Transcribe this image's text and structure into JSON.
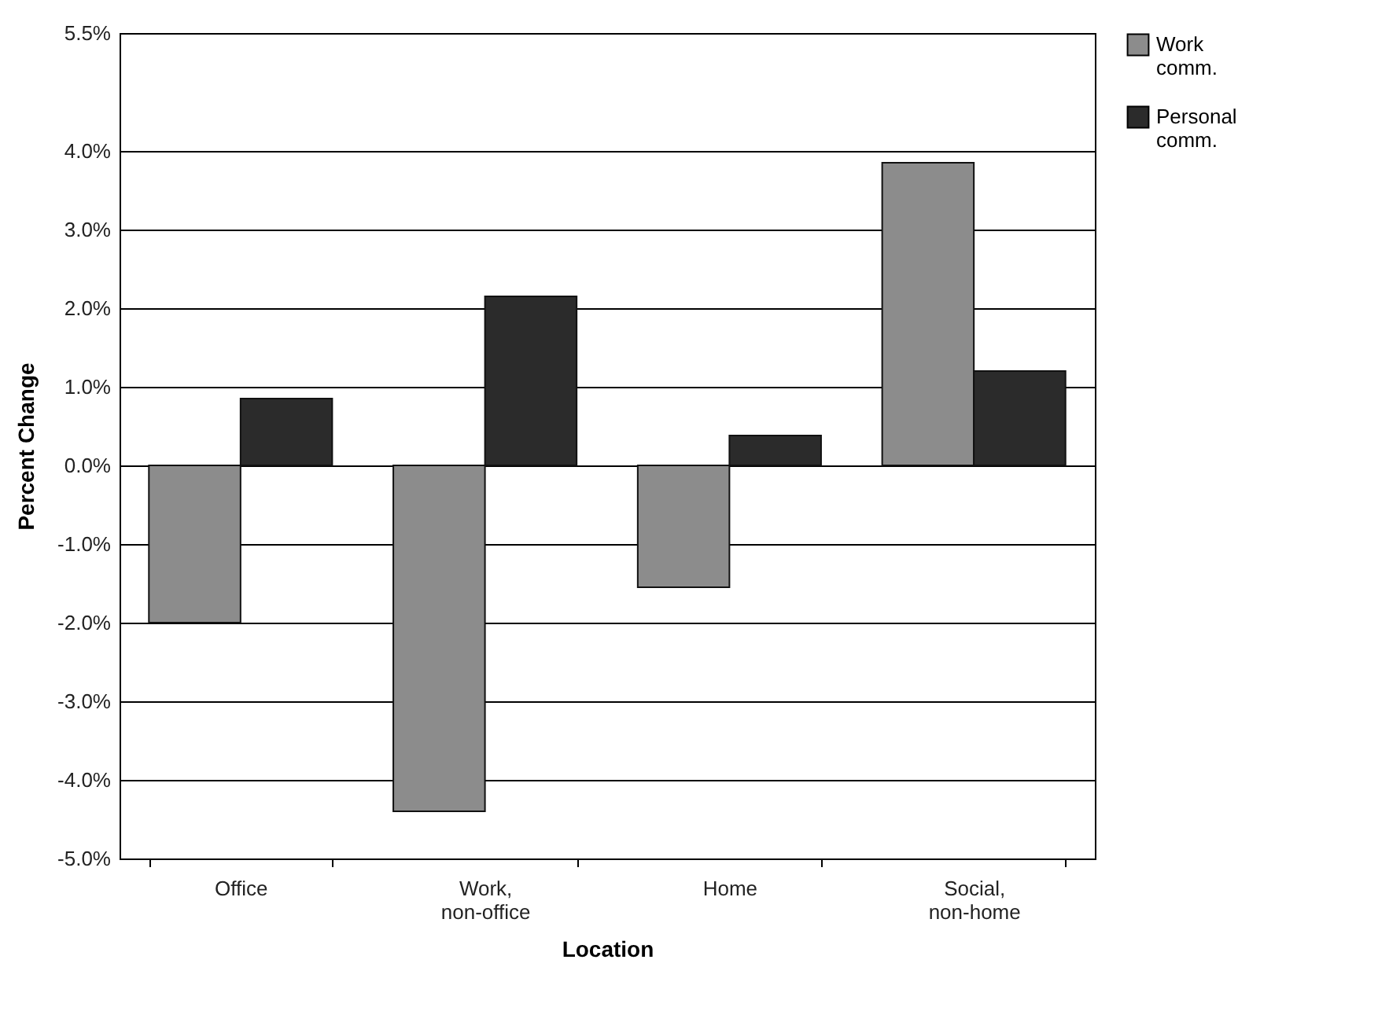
{
  "chart_data": {
    "type": "bar",
    "xlabel": "Location",
    "ylabel": "Percent Change",
    "categories": [
      "Office",
      "Work, non-office",
      "Home",
      "Social, non-home"
    ],
    "series": [
      {
        "name": "Work comm.",
        "color": "#8c8c8c",
        "values": [
          -2.0,
          -4.4,
          -1.55,
          3.85
        ]
      },
      {
        "name": "Personal comm.",
        "color": "#2b2b2b",
        "values": [
          0.85,
          2.15,
          0.38,
          1.2
        ]
      }
    ],
    "ylim": [
      -5,
      5.5
    ],
    "yticks": [
      {
        "value": -5,
        "label": "-5.0%"
      },
      {
        "value": -4,
        "label": "-4.0%"
      },
      {
        "value": -3,
        "label": "-3.0%"
      },
      {
        "value": -2,
        "label": "-2.0%"
      },
      {
        "value": -1,
        "label": "-1.0%"
      },
      {
        "value": 0,
        "label": "0.0%"
      },
      {
        "value": 1,
        "label": "1.0%"
      },
      {
        "value": 2,
        "label": "2.0%"
      },
      {
        "value": 3,
        "label": "3.0%"
      },
      {
        "value": 4,
        "label": "4.0%"
      },
      {
        "value": 5.5,
        "label": "5.5%"
      }
    ],
    "grid": "y",
    "legend": "right"
  }
}
